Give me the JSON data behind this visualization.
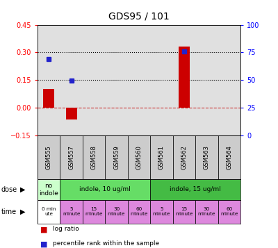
{
  "title": "GDS95 / 101",
  "samples": [
    "GSM555",
    "GSM557",
    "GSM558",
    "GSM559",
    "GSM560",
    "GSM561",
    "GSM562",
    "GSM563",
    "GSM564"
  ],
  "log_ratio": [
    0.1,
    -0.065,
    0.0,
    0.0,
    0.0,
    0.0,
    0.33,
    0.0,
    0.0
  ],
  "percentile_rank": [
    0.265,
    0.148,
    null,
    null,
    null,
    null,
    0.305,
    null,
    null
  ],
  "ylim_left": [
    -0.15,
    0.45
  ],
  "ylim_right": [
    0,
    100
  ],
  "yticks_left": [
    -0.15,
    0.0,
    0.15,
    0.3,
    0.45
  ],
  "yticks_right": [
    0,
    25,
    50,
    75,
    100
  ],
  "hline_dotted": [
    0.15,
    0.3
  ],
  "hline_dashed": 0.0,
  "bar_color": "#cc0000",
  "dot_color": "#2222cc",
  "plot_bg": "#e0e0e0",
  "sample_box_color": "#cccccc",
  "dose_spans": [
    {
      "start": 0,
      "end": 1,
      "label": "no\nindole",
      "color": "#ccffcc"
    },
    {
      "start": 1,
      "end": 5,
      "label": "indole, 10 ug/ml",
      "color": "#66dd66"
    },
    {
      "start": 5,
      "end": 9,
      "label": "indole, 15 ug/ml",
      "color": "#44bb44"
    }
  ],
  "time_spans": [
    {
      "start": 0,
      "end": 1,
      "label": "0 min\nute",
      "color": "#ffffff"
    },
    {
      "start": 1,
      "end": 2,
      "label": "5\nminute",
      "color": "#dd88dd"
    },
    {
      "start": 2,
      "end": 3,
      "label": "15\nminute",
      "color": "#dd88dd"
    },
    {
      "start": 3,
      "end": 4,
      "label": "30\nminute",
      "color": "#dd88dd"
    },
    {
      "start": 4,
      "end": 5,
      "label": "60\nminute",
      "color": "#dd88dd"
    },
    {
      "start": 5,
      "end": 6,
      "label": "5\nminute",
      "color": "#dd88dd"
    },
    {
      "start": 6,
      "end": 7,
      "label": "15\nminute",
      "color": "#dd88dd"
    },
    {
      "start": 7,
      "end": 8,
      "label": "30\nminute",
      "color": "#dd88dd"
    },
    {
      "start": 8,
      "end": 9,
      "label": "60\nminute",
      "color": "#dd88dd"
    }
  ],
  "legend_bar_label": "log ratio",
  "legend_dot_label": "percentile rank within the sample",
  "dose_row_label": "dose",
  "time_row_label": "time"
}
